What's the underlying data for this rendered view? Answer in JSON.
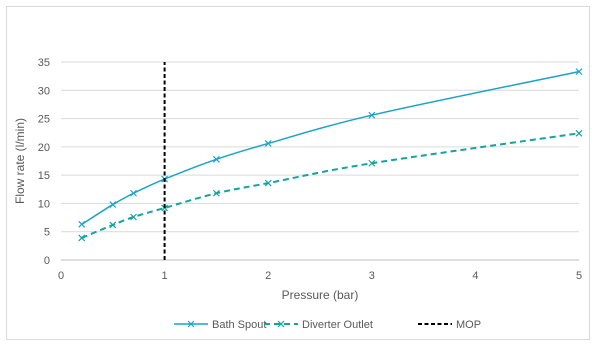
{
  "chart_data": {
    "type": "line",
    "title": "",
    "xlabel": "Pressure (bar)",
    "ylabel": "Flow rate (l/min)",
    "xlim": [
      0,
      5
    ],
    "ylim": [
      0,
      35
    ],
    "xticks": [
      0,
      1,
      2,
      3,
      4,
      5
    ],
    "yticks": [
      0,
      5,
      10,
      15,
      20,
      25,
      30,
      35
    ],
    "grid": "horizontal",
    "legend_position": "bottom",
    "series": [
      {
        "name": "Bath Spout",
        "color": "#1aa3c8",
        "line_style": "solid",
        "marker": "x",
        "x": [
          0.2,
          0.5,
          0.7,
          1.0,
          1.5,
          2.0,
          3.0,
          5.0
        ],
        "y": [
          6.3,
          9.8,
          11.8,
          14.3,
          17.8,
          20.6,
          25.6,
          33.3
        ]
      },
      {
        "name": "Diverter Outlet",
        "color": "#12a5a0",
        "line_style": "dashed",
        "marker": "x",
        "x": [
          0.2,
          0.5,
          0.7,
          1.0,
          1.5,
          2.0,
          3.0,
          5.0
        ],
        "y": [
          3.9,
          6.2,
          7.6,
          9.2,
          11.8,
          13.6,
          17.1,
          22.4
        ]
      },
      {
        "name": "MOP",
        "color": "#000000",
        "line_style": "dashed",
        "marker": "none",
        "x": [
          1.0,
          1.0
        ],
        "y": [
          0,
          35
        ]
      }
    ]
  }
}
